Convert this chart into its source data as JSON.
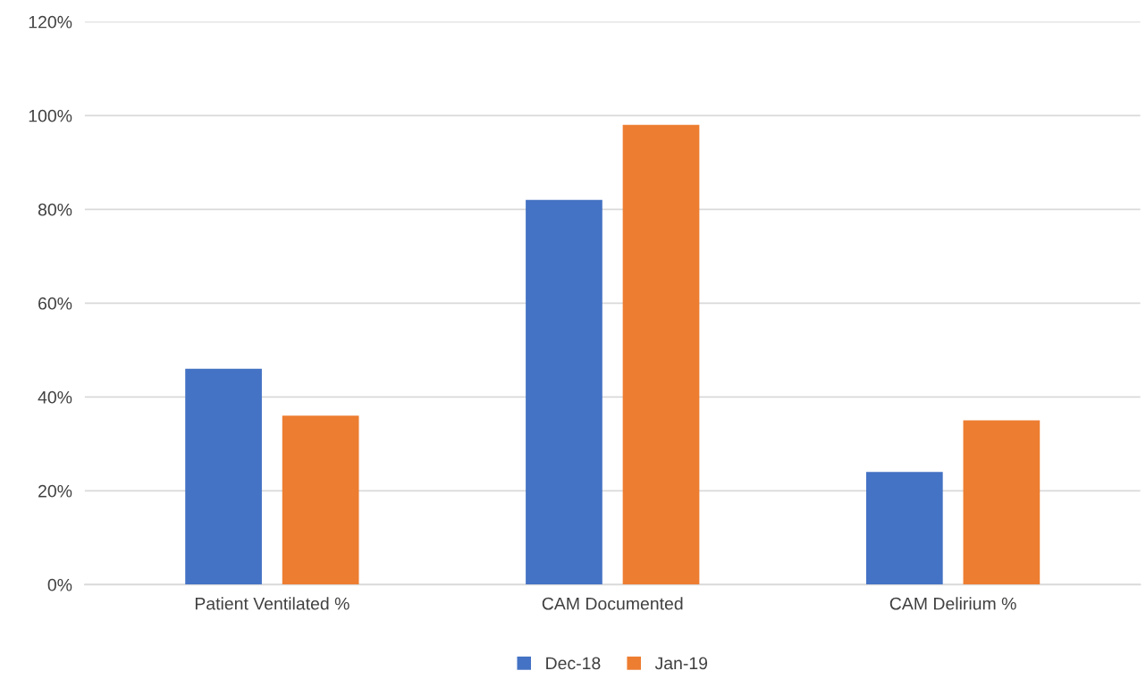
{
  "chart_data": {
    "type": "bar",
    "categories": [
      "Patient Ventilated %",
      "CAM Documented",
      "CAM Delirium %"
    ],
    "series": [
      {
        "name": "Dec-18",
        "color": "#4472c4",
        "values": [
          46,
          82,
          24
        ]
      },
      {
        "name": "Jan-19",
        "color": "#ed7d31",
        "values": [
          36,
          98,
          35
        ]
      }
    ],
    "ylim": [
      0,
      120
    ],
    "yticks": [
      {
        "value": 0,
        "label": "0%"
      },
      {
        "value": 20,
        "label": "20%"
      },
      {
        "value": 40,
        "label": "40%"
      },
      {
        "value": 60,
        "label": "60%"
      },
      {
        "value": 80,
        "label": "80%"
      },
      {
        "value": 100,
        "label": "100%"
      },
      {
        "value": 120,
        "label": "120%"
      }
    ],
    "grid": "y",
    "legend": "bottom"
  }
}
